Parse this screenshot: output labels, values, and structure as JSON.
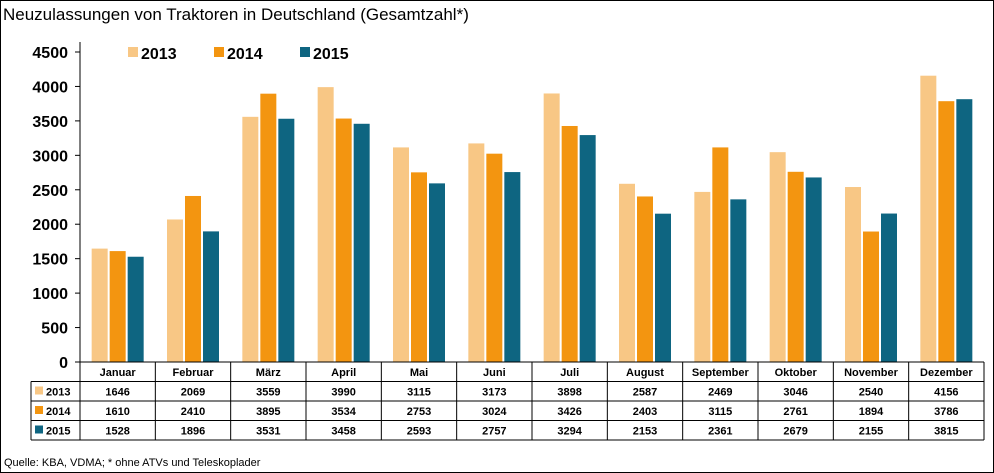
{
  "chart_data": {
    "type": "bar",
    "title": "Neuzulassungen von Traktoren in Deutschland (Gesamtzahl*)",
    "source": "Quelle: KBA, VDMA; * ohne ATVs und Teleskoplader",
    "categories": [
      "Januar",
      "Februar",
      "März",
      "April",
      "Mai",
      "Juni",
      "Juli",
      "August",
      "September",
      "Oktober",
      "November",
      "Dezember"
    ],
    "series": [
      {
        "name": "2013",
        "color": "#F8C785",
        "values": [
          1646,
          2069,
          3559,
          3990,
          3115,
          3173,
          3898,
          2587,
          2469,
          3046,
          2540,
          4156
        ]
      },
      {
        "name": "2014",
        "color": "#F39510",
        "values": [
          1610,
          2410,
          3895,
          3534,
          2753,
          3024,
          3426,
          2403,
          3115,
          2761,
          1894,
          3786
        ]
      },
      {
        "name": "2015",
        "color": "#0E6581",
        "values": [
          1528,
          1896,
          3531,
          3458,
          2593,
          2757,
          3294,
          2153,
          2361,
          2679,
          2155,
          3815
        ]
      }
    ],
    "ylim": [
      0,
      4500
    ],
    "yticks": [
      0,
      500,
      1000,
      1500,
      2000,
      2500,
      3000,
      3500,
      4000,
      4500
    ],
    "grid": false,
    "legend": "top-left",
    "data_table": true
  }
}
